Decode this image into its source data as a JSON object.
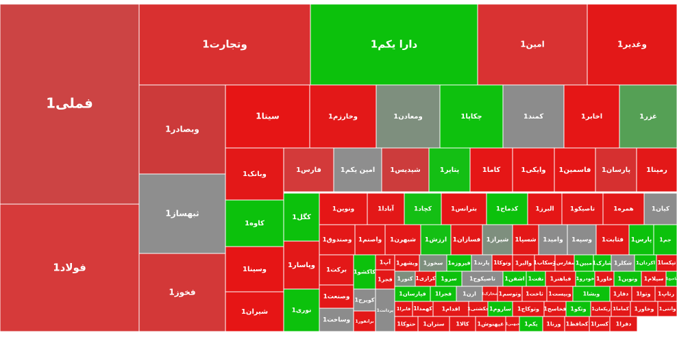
{
  "chart_data": {
    "type": "treemap",
    "colors": {
      "strong_up": "#0ab80a",
      "up": "#3dbf3d",
      "strong_down": "#e01616",
      "down": "#d62c2c",
      "mild_down": "#cf4646",
      "neutral": "#8c8c8c",
      "neutral_dark": "#7b8a7b"
    },
    "tiles": [
      {
        "label": "فملی1",
        "color": "#cc4444"
      },
      {
        "label": "فولاد1",
        "color": "#d63a3a"
      },
      {
        "label": "وتجارت1",
        "color": "#d93030"
      },
      {
        "label": "دارا یکم1",
        "color": "#0cc10c"
      },
      {
        "label": "امین1",
        "color": "#d93232"
      },
      {
        "label": "وغدیر1",
        "color": "#e31818"
      },
      {
        "label": "وبصادر1",
        "color": "#cc3a3a"
      },
      {
        "label": "ثبهساز1",
        "color": "#8e8e8e"
      },
      {
        "label": "فخوز1",
        "color": "#d33838"
      },
      {
        "label": "سیتا1",
        "color": "#e61515"
      },
      {
        "label": "وخارزم1",
        "color": "#e31818"
      },
      {
        "label": "ومعادن1",
        "color": "#7e8f7e"
      },
      {
        "label": "چکاپا1",
        "color": "#0ec10e"
      },
      {
        "label": "کمند1",
        "color": "#8c8c8c"
      },
      {
        "label": "اخابر1",
        "color": "#e51616"
      },
      {
        "label": "غزر1",
        "color": "#55a055"
      },
      {
        "label": "وبانک1",
        "color": "#e31818"
      },
      {
        "label": "فارس1",
        "color": "#d33a3a"
      },
      {
        "label": "امین یکم1",
        "color": "#8e8e8e"
      },
      {
        "label": "شپدیس1",
        "color": "#cc3c3c"
      },
      {
        "label": "پتایر1",
        "color": "#14bf14"
      },
      {
        "label": "کاما1",
        "color": "#e51616"
      },
      {
        "label": "وایکی1",
        "color": "#e51616"
      },
      {
        "label": "فاسمین1",
        "color": "#e51616"
      },
      {
        "label": "پارسان1",
        "color": "#d63030"
      },
      {
        "label": "رمپنا1",
        "color": "#e31818"
      },
      {
        "label": "کاوه1",
        "color": "#0cc10c"
      },
      {
        "label": "کگل1",
        "color": "#0cc10c"
      },
      {
        "label": "ونوین1",
        "color": "#e51616"
      },
      {
        "label": "آبادا1",
        "color": "#e31818"
      },
      {
        "label": "کچاد1",
        "color": "#14bf14"
      },
      {
        "label": "بترانس1",
        "color": "#e51616"
      },
      {
        "label": "کدماح1",
        "color": "#0cc10c"
      },
      {
        "label": "البرز1",
        "color": "#e51616"
      },
      {
        "label": "تاصیکو1",
        "color": "#e31818"
      },
      {
        "label": "همره1",
        "color": "#e31818"
      },
      {
        "label": "کیان1",
        "color": "#8c8c8c"
      },
      {
        "label": "وسینا1",
        "color": "#e61515"
      },
      {
        "label": "وپاسار1",
        "color": "#e31818"
      },
      {
        "label": "وصندوق1",
        "color": "#e31818"
      },
      {
        "label": "واصنم1",
        "color": "#e31818"
      },
      {
        "label": "شبهرن1",
        "color": "#e31818"
      },
      {
        "label": "ارزش1",
        "color": "#14bf14"
      },
      {
        "label": "فسازان1",
        "color": "#e31818"
      },
      {
        "label": "شیراز1",
        "color": "#7e8f7e"
      },
      {
        "label": "شسپا1",
        "color": "#e31818"
      },
      {
        "label": "وامید1",
        "color": "#8c8c8c"
      },
      {
        "label": "وسپه1",
        "color": "#8c8c8c"
      },
      {
        "label": "فثابت1",
        "color": "#e31818"
      },
      {
        "label": "پارس1",
        "color": "#0cc10c"
      },
      {
        "label": "جم1",
        "color": "#0cc10c"
      },
      {
        "label": "شیران1",
        "color": "#e61515"
      },
      {
        "label": "نوری1",
        "color": "#0cc10c"
      },
      {
        "label": "برکت1",
        "color": "#e31818"
      },
      {
        "label": "وصنعت1",
        "color": "#e31818"
      },
      {
        "label": "وساخت1",
        "color": "#8c8c8c"
      },
      {
        "label": "کاکشو1",
        "color": "#0cc10c"
      },
      {
        "label": "کویرح1",
        "color": "#8c8c8c"
      },
      {
        "label": "برانفور1",
        "color": "#e31818"
      },
      {
        "label": "آپ1",
        "color": "#e31818"
      },
      {
        "label": "فجر1",
        "color": "#e31818"
      },
      {
        "label": "وبشهر1",
        "color": "#e31818"
      },
      {
        "label": "سخوز1",
        "color": "#7e8f7e"
      },
      {
        "label": "فیروزه1",
        "color": "#0cc10c"
      },
      {
        "label": "پارند1",
        "color": "#8c8c8c"
      },
      {
        "label": "وتوکا1",
        "color": "#e31818"
      },
      {
        "label": "والبر1",
        "color": "#e31818"
      },
      {
        "label": "وسکاب1",
        "color": "#e31818"
      },
      {
        "label": "سفارس1",
        "color": "#e31818"
      },
      {
        "label": "مبین1",
        "color": "#0cc10c"
      },
      {
        "label": "شارک1",
        "color": "#0cc10c"
      },
      {
        "label": "شکلر1",
        "color": "#8c8c8c"
      },
      {
        "label": "اکردان1",
        "color": "#0cc10c"
      },
      {
        "label": "تپکسا1",
        "color": "#e31818"
      },
      {
        "label": "کنور1",
        "color": "#7e8f7e"
      },
      {
        "label": "کرازی1",
        "color": "#e31818"
      },
      {
        "label": "سرو1",
        "color": "#0cc10c"
      },
      {
        "label": "تاصیکوح1",
        "color": "#8c8c8c"
      },
      {
        "label": "اشفن1",
        "color": "#0cc10c"
      },
      {
        "label": "نفت1",
        "color": "#0cc10c"
      },
      {
        "label": "فباهنر1",
        "color": "#e31818"
      },
      {
        "label": "خودرو1",
        "color": "#0cc10c"
      },
      {
        "label": "خاور1",
        "color": "#e31818"
      },
      {
        "label": "ونوین1",
        "color": "#0cc10c"
      },
      {
        "label": "سیلام1",
        "color": "#e31818"
      },
      {
        "label": "تاختح1",
        "color": "#0cc10c"
      },
      {
        "label": "فپارسان1",
        "color": "#0cc10c"
      },
      {
        "label": "فجرا1",
        "color": "#0cc10c"
      },
      {
        "label": "ارن1",
        "color": "#8c8c8c"
      },
      {
        "label": "شخارک1",
        "color": "#e31818"
      },
      {
        "label": "وتوسم1",
        "color": "#e31818"
      },
      {
        "label": "ثاخت1",
        "color": "#e31818"
      },
      {
        "label": "وبیست1",
        "color": "#e31818"
      },
      {
        "label": "وبشا1",
        "color": "#0cc10c"
      },
      {
        "label": "دفار1",
        "color": "#e31818"
      },
      {
        "label": "وتوا1",
        "color": "#e31818"
      },
      {
        "label": "رتاپ1",
        "color": "#e31818"
      },
      {
        "label": "فابرا1",
        "color": "#e31818"
      },
      {
        "label": "کهمدا1",
        "color": "#e31818"
      },
      {
        "label": "اقدام1",
        "color": "#e31818"
      },
      {
        "label": "حکشتی1",
        "color": "#e31818"
      },
      {
        "label": "ساروم1",
        "color": "#0cc10c"
      },
      {
        "label": "وتوکاج1",
        "color": "#e31818"
      },
      {
        "label": "فخاسح1",
        "color": "#e31818"
      },
      {
        "label": "وتکو1",
        "color": "#0cc10c"
      },
      {
        "label": "زپکمان1",
        "color": "#e31818"
      },
      {
        "label": "کماما1",
        "color": "#e31818"
      },
      {
        "label": "وخاور1",
        "color": "#e31818"
      },
      {
        "label": "وانتی1",
        "color": "#e31818"
      },
      {
        "label": "پردانت1",
        "color": "#8c8c8c"
      },
      {
        "label": "حتوکا1",
        "color": "#e31818"
      },
      {
        "label": "ستران1",
        "color": "#e31818"
      },
      {
        "label": "کالا1",
        "color": "#e31818"
      },
      {
        "label": "غیهنوش1",
        "color": "#e31818"
      },
      {
        "label": "خبهمن1",
        "color": "#e31818"
      },
      {
        "label": "یکم1",
        "color": "#0cc10c"
      },
      {
        "label": "ورنا1",
        "color": "#e31818"
      },
      {
        "label": "کحافظ1",
        "color": "#e31818"
      },
      {
        "label": "کسرا1",
        "color": "#e31818"
      },
      {
        "label": "دفرا1",
        "color": "#e31818"
      }
    ]
  }
}
